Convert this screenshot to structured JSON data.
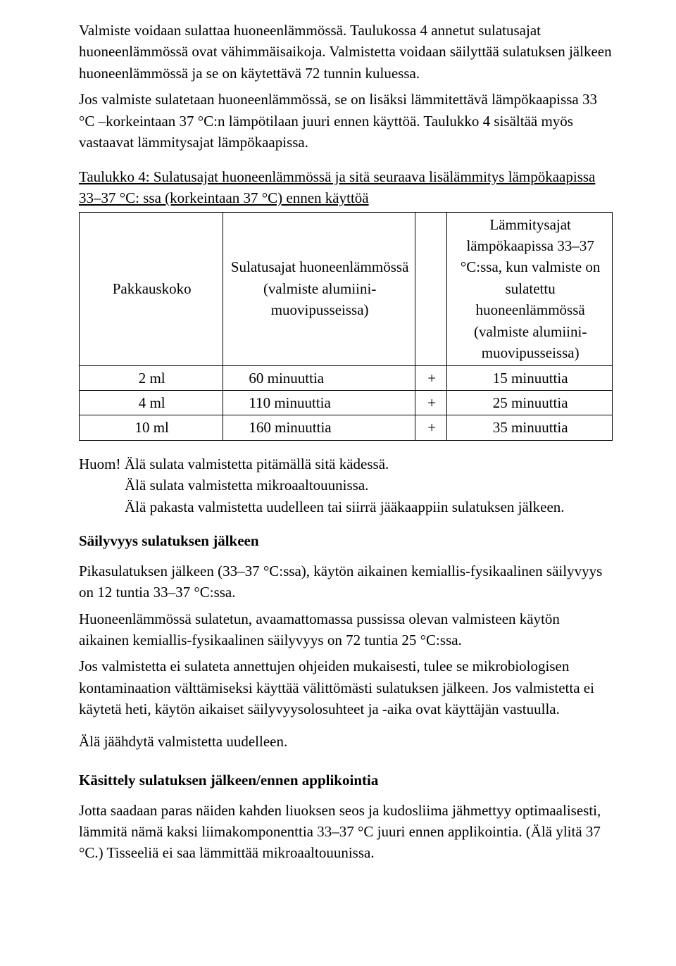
{
  "intro": {
    "p1": "Valmiste voidaan sulattaa huoneenlämmössä. Taulukossa 4 annetut sulatusajat huoneenlämmössä ovat vähimmäisaikoja. Valmistetta voidaan säilyttää sulatuksen jälkeen huoneenlämmössä ja se on käytettävä 72 tunnin kuluessa.",
    "p2": "Jos valmiste sulatetaan huoneenlämmössä, se on lisäksi lämmitettävä lämpökaapissa 33 °C –korkeintaan 37 °C:n lämpötilaan juuri ennen käyttöä. Taulukko 4 sisältää myös vastaavat lämmitysajat lämpökaapissa."
  },
  "table4": {
    "caption": "Taulukko 4: Sulatusajat huoneenlämmössä ja sitä seuraava lisälämmitys lämpökaapissa 33–37 °C: ssa (korkeintaan 37 °C) ennen käyttöä",
    "headers": {
      "pack": "Pakkauskoko",
      "melt": "Sulatusajat huoneenlämmössä (valmiste alumiini-muovipusseissa)",
      "plus": "",
      "heat": "Lämmitysajat lämpökaapissa 33–37 °C:ssa, kun valmiste on sulatettu huoneenlämmössä (valmiste alumiini-muovipusseissa)"
    },
    "rows": [
      {
        "pack": "2 ml",
        "melt": "60 minuuttia",
        "plus": "+",
        "heat": "15 minuuttia"
      },
      {
        "pack": "4 ml",
        "melt": "110 minuuttia",
        "plus": "+",
        "heat": "25 minuuttia"
      },
      {
        "pack": "10 ml",
        "melt": "160 minuuttia",
        "plus": "+",
        "heat": "35 minuuttia"
      }
    ]
  },
  "note": {
    "line1": "Huom! Älä sulata valmistetta pitämällä sitä kädessä.",
    "line2": "Älä sulata valmistetta mikroaaltouunissa.",
    "line3": "Älä pakasta valmistetta uudelleen tai siirrä jääkaappiin sulatuksen jälkeen."
  },
  "storage": {
    "heading": "Säilyvyys sulatuksen jälkeen",
    "p1": "Pikasulatuksen jälkeen (33–37 °C:ssa), käytön aikainen kemiallis-fysikaalinen säilyvyys on  12 tuntia 33–37 °C:ssa.",
    "p2": "Huoneenlämmössä sulatetun, avaamattomassa pussissa olevan valmisteen käytön aikainen kemiallis-fysikaalinen säilyvyys on  72 tuntia 25 °C:ssa.",
    "p3": "Jos valmistetta ei sulateta annettujen ohjeiden mukaisesti, tulee se mikrobiologisen kontaminaation välttämiseksi käyttää välittömästi sulatuksen jälkeen. Jos valmistetta ei käytetä heti, käytön aikaiset säilyvyysolosuhteet ja -aika ovat käyttäjän vastuulla.",
    "p4": "Älä jäähdytä valmistetta uudelleen."
  },
  "handling": {
    "heading": "Käsittely sulatuksen jälkeen/ennen applikointia",
    "p1": "Jotta saadaan paras näiden kahden liuoksen seos ja kudosliima jähmettyy optimaalisesti, lämmitä nämä kaksi liimakomponenttia 33–37 °C juuri ennen applikointia. (Älä ylitä 37 °C.) Tisseeliä ei saa lämmittää mikroaaltouunissa."
  }
}
